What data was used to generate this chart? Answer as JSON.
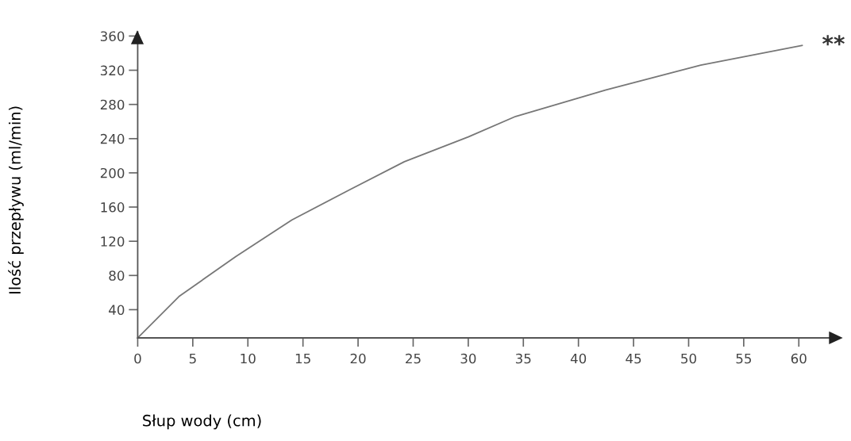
{
  "chart_data": {
    "type": "line",
    "xlabel": "Słup wody (cm)",
    "ylabel": "Ilość przepływu (ml/min)",
    "x": [
      0,
      3.8,
      8.9,
      14,
      19.2,
      24.2,
      30,
      34.3,
      42.5,
      51.1,
      60.3
    ],
    "series": [
      {
        "color": "#777777",
        "values": [
          7,
          56,
          102,
          145,
          180,
          213,
          242,
          266,
          297,
          326,
          349
        ]
      }
    ],
    "xlim": [
      0,
      63.5
    ],
    "ylim": [
      7,
      365
    ],
    "xticks": [
      0,
      5,
      10,
      15,
      20,
      25,
      30,
      35,
      40,
      45,
      50,
      55,
      60
    ],
    "yticks": [
      40,
      80,
      120,
      160,
      200,
      240,
      280,
      320,
      360
    ],
    "annotations": [
      "**"
    ],
    "grid": false,
    "legend": false,
    "marker": "none",
    "line_style": "solid"
  }
}
